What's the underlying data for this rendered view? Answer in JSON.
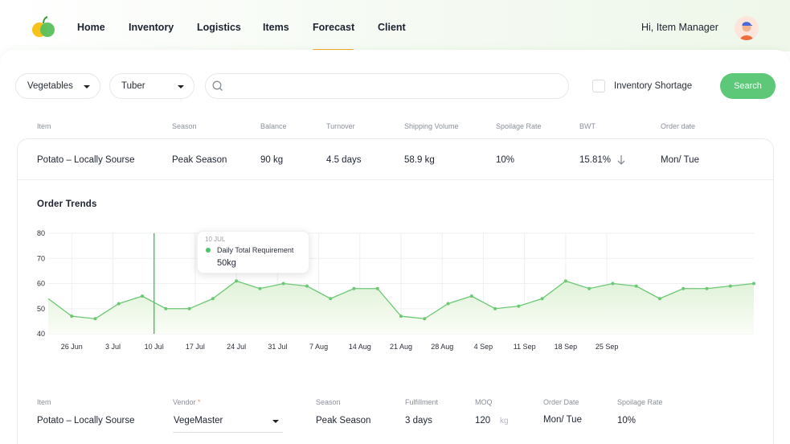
{
  "nav": {
    "items": [
      "Home",
      "Inventory",
      "Logistics",
      "Items",
      "Forecast",
      "Client"
    ],
    "active": "Forecast",
    "greeting": "Hi, Item Manager"
  },
  "filters": {
    "category": "Vegetables",
    "subcategory": "Tuber",
    "search_value": "",
    "shortage_label": "Inventory Shortage",
    "shortage_checked": false,
    "search_button": "Search"
  },
  "table": {
    "headers": [
      "Item",
      "Season",
      "Balance",
      "Turnover",
      "Shipping Volume",
      "Spoilage Rate",
      "BWT",
      "Order date"
    ],
    "row": {
      "item": "Potato – Locally Sourse",
      "season": "Peak Season",
      "balance": "90 kg",
      "turnover": "4.5 days",
      "shipping_volume": "58.9 kg",
      "spoilage_rate": "10%",
      "bwt": "15.81%",
      "order_date_a": "Mon",
      "order_date_sep": "/",
      "order_date_b": "Tue"
    }
  },
  "trends": {
    "title": "Order Trends",
    "tooltip": {
      "date": "10 JUL",
      "series": "Daily Total Requirement",
      "value": "50kg"
    }
  },
  "chart_data": {
    "type": "area",
    "title": "Order Trends",
    "series": [
      {
        "name": "Daily Total Requirement",
        "x_days": [
          0,
          4,
          8,
          12,
          16,
          20,
          24,
          28,
          32,
          36,
          40,
          44,
          48,
          52,
          56,
          60,
          64,
          68,
          72,
          76,
          80,
          84,
          88,
          92,
          96,
          100,
          104,
          108,
          112,
          116,
          120
        ],
        "values": [
          54,
          47,
          46,
          52,
          55,
          50,
          50,
          54,
          61,
          58,
          60,
          59,
          54,
          58,
          58,
          47,
          46,
          52,
          55,
          50,
          51,
          54,
          61,
          58,
          60,
          59,
          54,
          58,
          58,
          59,
          60
        ]
      }
    ],
    "x_start": "22 Jun",
    "x_ticks": [
      "26 Jun",
      "3 Jul",
      "10 Jul",
      "17 Jul",
      "24 Jul",
      "31 Jul",
      "7 Aug",
      "14 Aug",
      "21 Aug",
      "28 Aug",
      "4 Sep",
      "11 Sep",
      "18 Sep",
      "25 Sep"
    ],
    "y_ticks": [
      40,
      50,
      60,
      70,
      80
    ],
    "ylim": [
      40,
      80
    ],
    "grid": true,
    "highlight": {
      "x_label": "10 Jul",
      "value": 50
    },
    "colors": {
      "line": "#6cc874",
      "fill_top": "#dff2d8",
      "fill_bottom": "#fbfdf7",
      "grid": "#eef0f2"
    }
  },
  "detail": {
    "headers": {
      "item": "Item",
      "vendor": "Vendor",
      "vendor_required": "*",
      "season": "Season",
      "fulfillment": "Fulfillment",
      "moq": "MOQ",
      "order_date": "Order Date",
      "spoilage_rate": "Spoilage Rate"
    },
    "item": "Potato – Locally Sourse",
    "vendor": "VegeMaster",
    "season": "Peak Season",
    "fulfillment": "3 days",
    "moq": "120",
    "moq_unit": "kg",
    "order_date_a": "Mon",
    "order_date_sep": "/",
    "order_date_b": "Tue",
    "spoilage_rate": "10%"
  },
  "colors": {
    "accent": "#5cc878",
    "nav_underline": "#f5a623"
  }
}
